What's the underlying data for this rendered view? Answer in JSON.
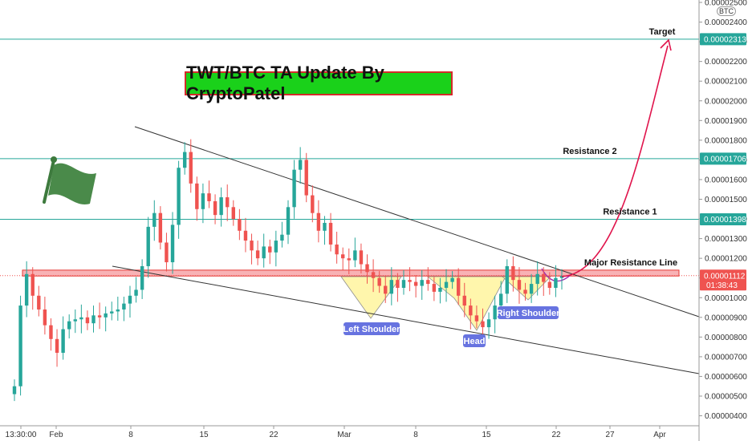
{
  "title_banner": "TWT/BTC TA Update By CryptoPatel",
  "symbol": "BTC",
  "colors": {
    "up": "#26a69a",
    "down": "#ef5350",
    "level_line": "#26a69a",
    "resistance_zone": "#f7a5a8",
    "resistance_zone_border": "#e53935",
    "pattern_fill": "#fff59d",
    "pill": "#6773e0",
    "target_arrow": "#e0144c",
    "price_tag": "#ef5350"
  },
  "chart_data": {
    "type": "candlestick",
    "title": "TWT/BTC TA Update By CryptoPatel",
    "ylim": [
      4e-06,
      2.6e-06
    ],
    "y_ticks": [
      "0.00000400",
      "0.00000500",
      "0.00000600",
      "0.00000700",
      "0.00000800",
      "0.00000900",
      "0.00001000",
      "0.00001100",
      "0.00001200",
      "0.00001300",
      "0.00001400",
      "0.00001500",
      "0.00001600",
      "0.00001700",
      "0.00001800",
      "0.00001900",
      "0.00002000",
      "0.00002100",
      "0.00002200",
      "0.00002300",
      "0.00002400",
      "0.00002500"
    ],
    "x_ticks": [
      "13:30:00",
      "Feb",
      "8",
      "15",
      "22",
      "Mar",
      "8",
      "15",
      "22",
      "27",
      "Apr"
    ],
    "levels": [
      {
        "label": "Target",
        "price": 2.313e-05,
        "price_text": "0.00002313"
      },
      {
        "label": "Resistance 2",
        "price": 1.706e-05,
        "price_text": "0.00001706"
      },
      {
        "label": "Resistance 1",
        "price": 1.398e-05,
        "price_text": "0.00001398"
      }
    ],
    "major_resistance": {
      "label": "Major Resistance Line",
      "low": 1.11e-05,
      "high": 1.14e-05
    },
    "last_price": {
      "value": 1.112e-05,
      "value_text": "0.00001112",
      "countdown": "01:38:43"
    },
    "pattern": {
      "name": "Inverse Head and Shoulders",
      "labels": [
        "Left Shoulder",
        "Head",
        "Right Shoulder"
      ]
    },
    "series": [
      {
        "name": "candles",
        "values": [
          5.5,
          9.6,
          11.2,
          10.1,
          9.4,
          8.6,
          7.9,
          7.2,
          8.4,
          8.8,
          8.9,
          9.0,
          8.7,
          9.1,
          9.0,
          9.2,
          9.3,
          9.4,
          9.7,
          10.1,
          10.4,
          11.6,
          13.6,
          14.3,
          12.8,
          11.8,
          13.7,
          16.6,
          17.4,
          15.8,
          14.5,
          15.3,
          14.9,
          14.2,
          15.1,
          14.6,
          14.0,
          13.4,
          12.9,
          12.4,
          12.0,
          12.6,
          12.3,
          12.9,
          13.2,
          14.6,
          16.5,
          17.0,
          15.2,
          14.3,
          13.4,
          13.8,
          12.7,
          12.2,
          12.0,
          11.9,
          12.4,
          11.7,
          11.3,
          11.0,
          10.6,
          10.2,
          10.9,
          10.5,
          10.9,
          10.8,
          10.6,
          10.9,
          10.7,
          10.3,
          10.5,
          10.8,
          11.0,
          10.1,
          9.6,
          9.1,
          8.8,
          8.5,
          8.9,
          9.6,
          10.2,
          11.6,
          10.9,
          10.4,
          10.2,
          10.7,
          11.2,
          10.8,
          10.5,
          11.0,
          11.1
        ]
      }
    ]
  }
}
